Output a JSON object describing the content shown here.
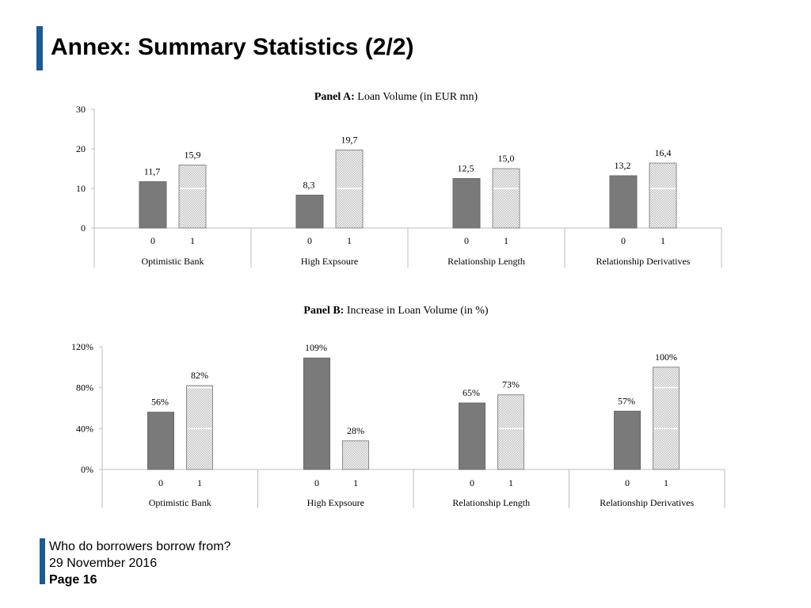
{
  "slide": {
    "title": "Annex: Summary Statistics (2/2)"
  },
  "footer": {
    "subtitle": "Who do borrowers borrow from?",
    "date": "29 November 2016",
    "page": "Page 16"
  },
  "colors": {
    "accent": "#1a5a96",
    "bar_dark": "#7a7a7a",
    "bar_light": "#d6d6d6"
  },
  "chart_data": [
    {
      "type": "bar",
      "title_prefix": "Panel A:",
      "title": "Loan Volume (in EUR mn)",
      "groups": [
        "Optimistic Bank",
        "High Expsoure",
        "Relationship Length",
        "Relationship Derivatives"
      ],
      "sub_categories": [
        "0",
        "1"
      ],
      "series": [
        {
          "name": "0",
          "values": [
            11.7,
            8.3,
            12.5,
            13.2
          ],
          "labels": [
            "11,7",
            "8,3",
            "12,5",
            "13,2"
          ]
        },
        {
          "name": "1",
          "values": [
            15.9,
            19.7,
            15.0,
            16.4
          ],
          "labels": [
            "15,9",
            "19,7",
            "15,0",
            "16,4"
          ]
        }
      ],
      "ylim": [
        0,
        30
      ],
      "yticks": [
        0,
        10,
        20,
        30
      ],
      "ytick_labels": [
        "0",
        "10",
        "20",
        "30"
      ]
    },
    {
      "type": "bar",
      "title_prefix": "Panel B:",
      "title": "Increase in Loan Volume (in %)",
      "groups": [
        "Optimistic Bank",
        "High Expsoure",
        "Relationship Length",
        "Relationship Derivatives"
      ],
      "sub_categories": [
        "0",
        "1"
      ],
      "series": [
        {
          "name": "0",
          "values": [
            56,
            109,
            65,
            57
          ],
          "labels": [
            "56%",
            "109%",
            "65%",
            "57%"
          ]
        },
        {
          "name": "1",
          "values": [
            82,
            28,
            73,
            100
          ],
          "labels": [
            "82%",
            "28%",
            "73%",
            "100%"
          ]
        }
      ],
      "ylim": [
        0,
        120
      ],
      "yticks": [
        0,
        40,
        80,
        120
      ],
      "ytick_labels": [
        "0%",
        "40%",
        "80%",
        "120%"
      ]
    }
  ]
}
